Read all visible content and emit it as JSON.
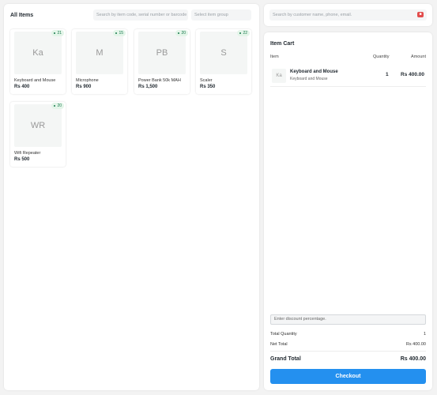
{
  "items_panel": {
    "title": "All Items",
    "search_placeholder": "Search by item code, serial number or barcode",
    "group_placeholder": "Select item group",
    "items": [
      {
        "abbr": "Ka",
        "name": "Keyboard and Mouse",
        "price": "Rs 400",
        "qty": "21"
      },
      {
        "abbr": "M",
        "name": "Microphone",
        "price": "Rs 900",
        "qty": "15"
      },
      {
        "abbr": "PB",
        "name": "Power Bank 50k MAH",
        "price": "Rs 1,500",
        "qty": "20"
      },
      {
        "abbr": "S",
        "name": "Scaler",
        "price": "Rs 350",
        "qty": "22"
      },
      {
        "abbr": "WR",
        "name": "Wifi Repeater",
        "price": "Rs 500",
        "qty": "20"
      }
    ]
  },
  "customer": {
    "search_placeholder": "Search by customer name, phone, email.",
    "new_button_icon": "add-customer-icon"
  },
  "cart": {
    "title": "Item Cart",
    "col_item": "Item",
    "col_qty": "Quantity",
    "col_amount": "Amount",
    "rows": [
      {
        "abbr": "Ka",
        "name": "Keyboard and Mouse",
        "sub": "Keyboard and Mouse",
        "qty": "1",
        "amount": "Rs 400.00"
      }
    ],
    "discount_placeholder": "Enter discount percentage.",
    "total_qty_label": "Total Quantity",
    "total_qty_value": "1",
    "net_total_label": "Net Total",
    "net_total_value": "Rs 400.00",
    "grand_total_label": "Grand Total",
    "grand_total_value": "Rs 400.00",
    "checkout_label": "Checkout"
  },
  "colors": {
    "accent": "#2490ef",
    "stock_badge_bg": "#e4f5e9",
    "stock_badge_text": "#16794c",
    "new_customer_button": "#e24c4c"
  }
}
